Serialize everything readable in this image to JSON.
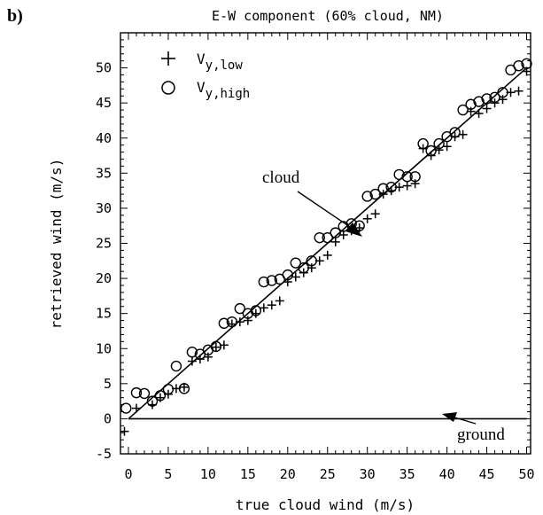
{
  "chart_data": {
    "type": "scatter",
    "panel_label": "b)",
    "title": "E-W component (60% cloud, NM)",
    "xlabel": "true cloud wind (m/s)",
    "ylabel": "retrieved wind (m/s)",
    "xlim": [
      -1,
      50.5
    ],
    "ylim": [
      -5,
      55
    ],
    "xticks": [
      0,
      5,
      10,
      15,
      20,
      25,
      30,
      35,
      40,
      45,
      50
    ],
    "yticks": [
      -5,
      0,
      5,
      10,
      15,
      20,
      25,
      30,
      35,
      40,
      45,
      50
    ],
    "grid": false,
    "legend_position": "top-left",
    "series": [
      {
        "name": "V_y,low",
        "legend_main": "V",
        "legend_sub": "y,low",
        "marker": "plus",
        "points": [
          [
            -0.5,
            -1.8
          ],
          [
            1,
            1.5
          ],
          [
            3,
            2
          ],
          [
            4,
            3
          ],
          [
            5,
            3.5
          ],
          [
            6,
            4.3
          ],
          [
            7,
            4.5
          ],
          [
            8,
            8.2
          ],
          [
            9,
            8.5
          ],
          [
            10,
            8.8
          ],
          [
            11,
            10.2
          ],
          [
            12,
            10.5
          ],
          [
            13,
            13.5
          ],
          [
            14,
            13.8
          ],
          [
            15,
            14
          ],
          [
            16,
            15
          ],
          [
            17,
            15.8
          ],
          [
            18,
            16.2
          ],
          [
            19,
            16.8
          ],
          [
            20,
            19.5
          ],
          [
            21,
            20.2
          ],
          [
            22,
            20.8
          ],
          [
            23,
            21.5
          ],
          [
            24,
            22.5
          ],
          [
            25,
            23.3
          ],
          [
            26,
            25.2
          ],
          [
            27,
            26.2
          ],
          [
            28,
            26.8
          ],
          [
            29,
            27.2
          ],
          [
            30,
            28.5
          ],
          [
            31,
            29.2
          ],
          [
            32,
            32
          ],
          [
            33,
            32.5
          ],
          [
            34,
            33
          ],
          [
            35,
            33.2
          ],
          [
            36,
            33.5
          ],
          [
            37,
            38.5
          ],
          [
            38,
            37.5
          ],
          [
            39,
            38.3
          ],
          [
            40,
            38.8
          ],
          [
            41,
            40.2
          ],
          [
            42,
            40.5
          ],
          [
            43,
            43.8
          ],
          [
            44,
            43.5
          ],
          [
            45,
            44.2
          ],
          [
            46,
            45
          ],
          [
            47,
            45.5
          ],
          [
            48,
            46.5
          ],
          [
            49,
            46.7
          ],
          [
            50,
            49.5
          ]
        ]
      },
      {
        "name": "V_y,high",
        "legend_main": "V",
        "legend_sub": "y,high",
        "marker": "circle",
        "points": [
          [
            -0.3,
            1.5
          ],
          [
            1,
            3.7
          ],
          [
            2,
            3.6
          ],
          [
            3,
            2.5
          ],
          [
            4,
            3.3
          ],
          [
            5,
            4.2
          ],
          [
            6,
            7.5
          ],
          [
            7,
            4.3
          ],
          [
            8,
            9.5
          ],
          [
            9,
            9.2
          ],
          [
            10,
            9.8
          ],
          [
            11,
            10.3
          ],
          [
            12,
            13.6
          ],
          [
            13,
            13.8
          ],
          [
            14,
            15.7
          ],
          [
            15,
            15
          ],
          [
            16,
            15.4
          ],
          [
            17,
            19.5
          ],
          [
            18,
            19.7
          ],
          [
            19,
            19.9
          ],
          [
            20,
            20.5
          ],
          [
            21,
            22.2
          ],
          [
            22,
            21.5
          ],
          [
            23,
            22.5
          ],
          [
            24,
            25.8
          ],
          [
            25,
            25.8
          ],
          [
            26,
            26.5
          ],
          [
            27,
            27.4
          ],
          [
            28,
            27.8
          ],
          [
            29,
            27.5
          ],
          [
            30,
            31.7
          ],
          [
            31,
            32
          ],
          [
            32,
            32.8
          ],
          [
            33,
            33
          ],
          [
            34,
            34.8
          ],
          [
            35,
            34.5
          ],
          [
            36,
            34.5
          ],
          [
            37,
            39.2
          ],
          [
            38,
            38.2
          ],
          [
            39,
            39.2
          ],
          [
            40,
            40.2
          ],
          [
            41,
            40.8
          ],
          [
            42,
            44
          ],
          [
            43,
            44.8
          ],
          [
            44,
            45.2
          ],
          [
            45,
            45.6
          ],
          [
            46,
            45.8
          ],
          [
            47,
            46.5
          ],
          [
            48,
            49.7
          ],
          [
            49,
            50.3
          ],
          [
            50,
            50.6
          ]
        ]
      }
    ],
    "lines": [
      {
        "name": "cloud",
        "points": [
          [
            0,
            0
          ],
          [
            50,
            50
          ]
        ]
      },
      {
        "name": "ground",
        "points": [
          [
            0,
            0
          ],
          [
            50,
            0
          ]
        ]
      }
    ],
    "annotations": [
      {
        "text": "cloud",
        "anchor": [
          30,
          30
        ]
      },
      {
        "text": "ground",
        "anchor": [
          44,
          0.5
        ]
      }
    ]
  }
}
